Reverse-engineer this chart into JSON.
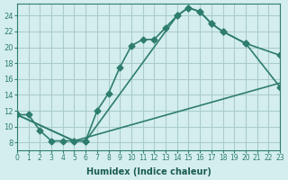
{
  "xlabel": "Humidex (Indice chaleur)",
  "ylabel": "",
  "bg_color": "#d4eeed",
  "grid_color": "#aacccc",
  "line_color": "#2e7d6e",
  "xlim": [
    0,
    23
  ],
  "ylim": [
    7,
    25
  ],
  "xticks": [
    0,
    1,
    2,
    3,
    4,
    5,
    6,
    7,
    8,
    9,
    10,
    11,
    12,
    13,
    14,
    15,
    16,
    17,
    18,
    19,
    20,
    21,
    22,
    23
  ],
  "yticks": [
    8,
    10,
    12,
    14,
    16,
    18,
    20,
    22,
    24
  ],
  "line1_x": [
    0,
    1,
    2,
    3,
    4,
    5,
    6,
    7,
    8,
    9,
    10,
    11,
    12,
    13,
    14,
    15,
    16,
    17,
    18,
    20,
    23
  ],
  "line1_y": [
    11.5,
    11.5,
    9.5,
    8.2,
    8.2,
    8.2,
    8.2,
    12.0,
    14.2,
    17.5,
    20.2,
    21.0,
    21.0,
    22.5,
    24.0,
    25.0,
    24.5,
    23.0,
    22.0,
    20.5,
    15.0
  ],
  "line2_x": [
    0,
    5,
    6,
    14,
    15,
    16,
    17,
    18,
    20,
    23
  ],
  "line2_y": [
    11.5,
    8.2,
    8.2,
    24.0,
    25.0,
    24.5,
    23.0,
    22.0,
    20.5,
    19.0
  ],
  "line3_x": [
    0,
    5,
    23
  ],
  "line3_y": [
    11.5,
    8.2,
    15.5
  ]
}
